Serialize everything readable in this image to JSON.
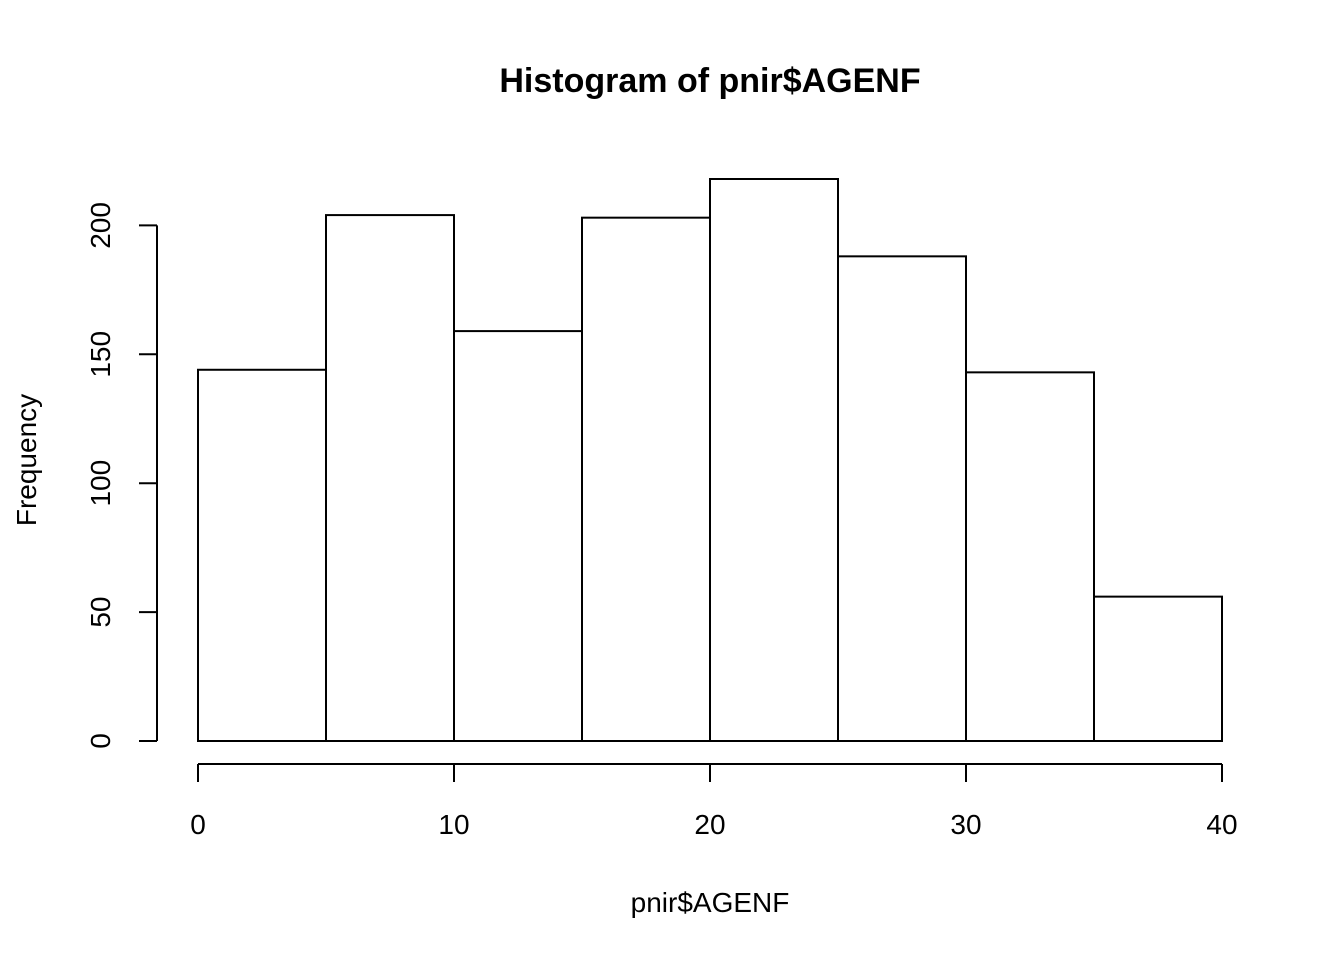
{
  "chart_data": {
    "type": "bar",
    "title": "Histogram of pnir$AGENF",
    "xlabel": "pnir$AGENF",
    "ylabel": "Frequency",
    "bin_edges": [
      0,
      5,
      10,
      15,
      20,
      25,
      30,
      35,
      40
    ],
    "values": [
      144,
      204,
      159,
      203,
      218,
      188,
      143,
      56
    ],
    "xlim": [
      0,
      40
    ],
    "ylim": [
      0,
      218
    ],
    "x_ticks": [
      0,
      10,
      20,
      30,
      40
    ],
    "y_ticks": [
      0,
      50,
      100,
      150,
      200
    ],
    "grid": false,
    "legend": "none"
  }
}
